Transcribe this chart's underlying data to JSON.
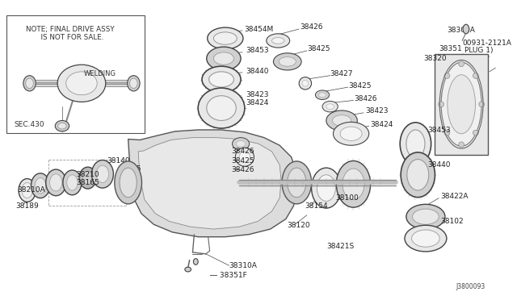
{
  "bg_color": "#ffffff",
  "fig_width": 6.4,
  "fig_height": 3.72,
  "dpi": 100,
  "note_line1": "NOTE; FINAL DRIVE ASSY",
  "note_line2": "  IS NOT FOR SALE.",
  "welding_text": "WELDING",
  "sec_text": "SEC.430",
  "catalog_num": "J3800093",
  "line_color": "#444444",
  "fill_light": "#e8e8e8",
  "fill_med": "#d0d0d0",
  "fill_dark": "#b8b8b8"
}
